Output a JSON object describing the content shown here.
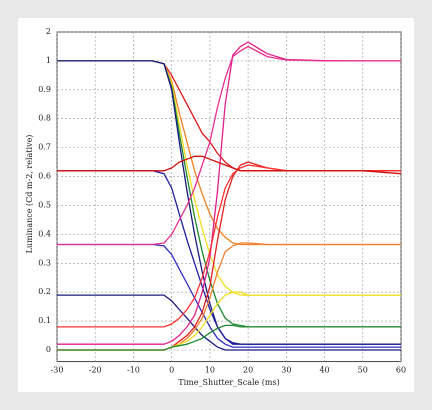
{
  "chart_data": {
    "type": "line",
    "xlabel": "Time_Shutter_Scale (ms)",
    "ylabel": "Luminance (Cd m-2, relative)",
    "x": [
      -30,
      -10,
      -5,
      -2,
      0,
      2,
      4,
      6,
      8,
      10,
      12,
      14,
      16,
      18,
      20,
      25,
      30,
      40,
      50,
      60
    ],
    "xlim": [
      -30,
      60
    ],
    "xticks": [
      -30,
      -20,
      -10,
      0,
      10,
      20,
      30,
      40,
      50,
      60
    ],
    "ylim": [
      -0.04,
      2
    ],
    "yticks": [
      0,
      0.1,
      0.2,
      0.3,
      0.4,
      0.5,
      0.6,
      0.7,
      0.8,
      0.9,
      1,
      2
    ],
    "grid": true,
    "series": [
      {
        "color": "#e01818",
        "values": [
          1,
          1,
          1,
          0.99,
          0.95,
          0.9,
          0.85,
          0.8,
          0.75,
          0.72,
          0.68,
          0.65,
          0.63,
          0.62,
          0.62,
          0.62,
          0.62,
          0.62,
          0.62,
          0.62
        ]
      },
      {
        "color": "#f08020",
        "values": [
          1,
          1,
          1,
          0.99,
          0.93,
          0.82,
          0.72,
          0.62,
          0.54,
          0.47,
          0.42,
          0.39,
          0.37,
          0.365,
          0.365,
          0.365,
          0.365,
          0.365,
          0.365,
          0.365
        ]
      },
      {
        "color": "#f0e020",
        "values": [
          1,
          1,
          1,
          0.99,
          0.92,
          0.78,
          0.64,
          0.52,
          0.42,
          0.33,
          0.26,
          0.22,
          0.2,
          0.19,
          0.19,
          0.19,
          0.19,
          0.19,
          0.19,
          0.19
        ]
      },
      {
        "color": "#208a30",
        "values": [
          1,
          1,
          1,
          0.99,
          0.91,
          0.75,
          0.6,
          0.46,
          0.34,
          0.24,
          0.16,
          0.11,
          0.09,
          0.085,
          0.08,
          0.08,
          0.08,
          0.08,
          0.08,
          0.08
        ]
      },
      {
        "color": "#1a1a80",
        "values": [
          1,
          1,
          1,
          0.99,
          0.9,
          0.72,
          0.55,
          0.4,
          0.27,
          0.16,
          0.08,
          0.04,
          0.025,
          0.02,
          0.02,
          0.02,
          0.02,
          0.02,
          0.02,
          0.02
        ]
      },
      {
        "color": "#2020a0",
        "values": [
          0.62,
          0.62,
          0.62,
          0.61,
          0.56,
          0.47,
          0.38,
          0.3,
          0.22,
          0.14,
          0.08,
          0.04,
          0.02,
          0.02,
          0.02,
          0.02,
          0.02,
          0.02,
          0.02,
          0.02
        ]
      },
      {
        "color": "#3030c0",
        "values": [
          0.365,
          0.365,
          0.365,
          0.36,
          0.33,
          0.28,
          0.23,
          0.18,
          0.13,
          0.08,
          0.04,
          0.02,
          0.01,
          0.01,
          0.01,
          0.01,
          0.01,
          0.01,
          0.01,
          0.01
        ]
      },
      {
        "color": "#1a1a80",
        "values": [
          0.19,
          0.19,
          0.19,
          0.19,
          0.17,
          0.14,
          0.11,
          0.08,
          0.05,
          0.03,
          0.01,
          0,
          0,
          0,
          0,
          0,
          0,
          0,
          0,
          0
        ]
      },
      {
        "color": "#e0208a",
        "values": [
          0.02,
          0.02,
          0.02,
          0.02,
          0.03,
          0.05,
          0.08,
          0.12,
          0.2,
          0.32,
          0.55,
          0.85,
          1.2,
          1.5,
          1.65,
          1.25,
          1.05,
          1.01,
          1,
          1
        ]
      },
      {
        "color": "#e83090",
        "values": [
          0.365,
          0.365,
          0.365,
          0.37,
          0.4,
          0.45,
          0.5,
          0.56,
          0.64,
          0.72,
          0.84,
          0.94,
          1.15,
          1.35,
          1.5,
          1.15,
          1.03,
          1,
          1,
          1
        ]
      },
      {
        "color": "#e02020",
        "values": [
          0,
          0,
          0,
          0,
          0.01,
          0.03,
          0.05,
          0.08,
          0.13,
          0.22,
          0.38,
          0.52,
          0.6,
          0.64,
          0.65,
          0.63,
          0.62,
          0.62,
          0.62,
          0.62
        ]
      },
      {
        "color": "#ff3030",
        "values": [
          0.08,
          0.08,
          0.08,
          0.08,
          0.09,
          0.11,
          0.14,
          0.18,
          0.25,
          0.34,
          0.46,
          0.56,
          0.61,
          0.63,
          0.64,
          0.63,
          0.62,
          0.62,
          0.62,
          0.62
        ]
      },
      {
        "color": "#f08030",
        "values": [
          0,
          0,
          0,
          0,
          0.01,
          0.02,
          0.04,
          0.07,
          0.11,
          0.18,
          0.27,
          0.34,
          0.36,
          0.37,
          0.37,
          0.365,
          0.365,
          0.365,
          0.365,
          0.365
        ]
      },
      {
        "color": "#f0e020",
        "values": [
          0,
          0,
          0,
          0,
          0.01,
          0.02,
          0.03,
          0.05,
          0.08,
          0.12,
          0.16,
          0.19,
          0.2,
          0.2,
          0.19,
          0.19,
          0.19,
          0.19,
          0.19,
          0.19
        ]
      },
      {
        "color": "#208a30",
        "values": [
          0,
          0,
          0,
          0,
          0.01,
          0.015,
          0.02,
          0.03,
          0.04,
          0.06,
          0.075,
          0.085,
          0.085,
          0.08,
          0.08,
          0.08,
          0.08,
          0.08,
          0.08,
          0.08
        ]
      },
      {
        "color": "#d01010",
        "values": [
          0.62,
          0.62,
          0.62,
          0.62,
          0.63,
          0.65,
          0.66,
          0.67,
          0.67,
          0.66,
          0.65,
          0.64,
          0.63,
          0.62,
          0.62,
          0.62,
          0.62,
          0.62,
          0.62,
          0.61
        ]
      }
    ]
  }
}
